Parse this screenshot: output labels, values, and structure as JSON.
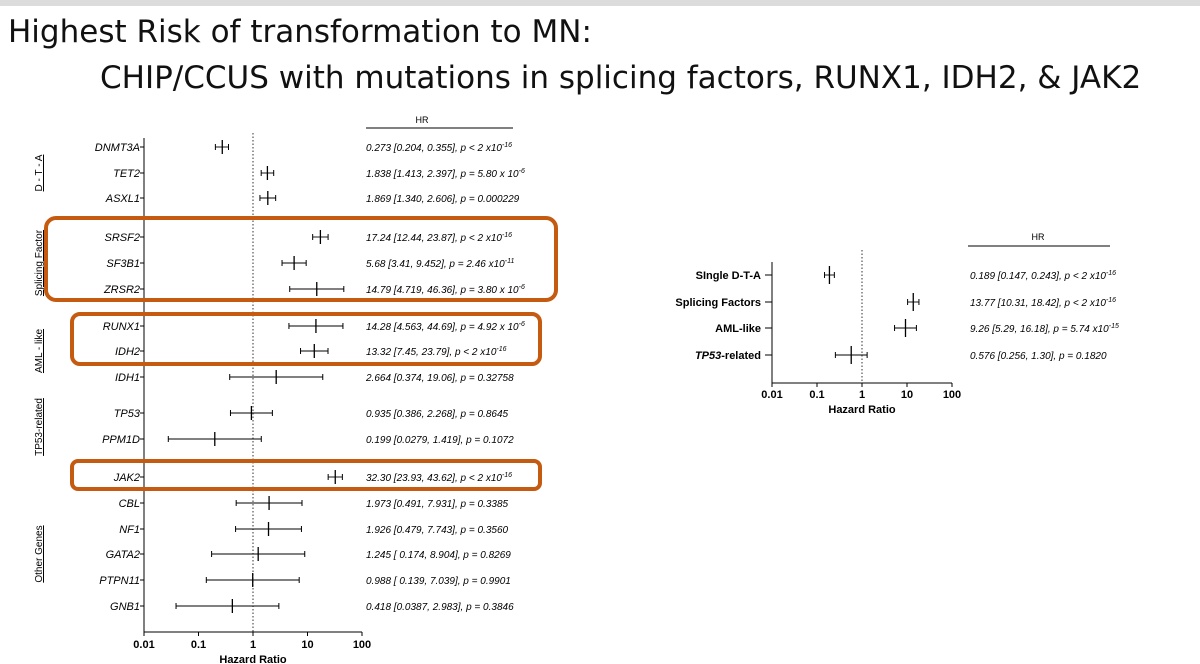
{
  "title": {
    "line1": "Highest Risk of transformation to MN:",
    "line2": "CHIP/CCUS with mutations in splicing factors, RUNX1, IDH2, & JAK2"
  },
  "colors": {
    "highlight": "#c55a11",
    "ink": "#000000"
  },
  "chart_data": [
    {
      "type": "forest",
      "scale": "log",
      "xlim": [
        0.01,
        100
      ],
      "xticks": [
        "0.01",
        "0.1",
        "1",
        "10",
        "100"
      ],
      "xlabel": "Hazard Ratio",
      "hr_header": "HR",
      "groups": [
        {
          "label": "D - T - A"
        },
        {
          "label": "Splicing Factor",
          "highlighted": true
        },
        {
          "label": "AML - like"
        },
        {
          "label": "TP53-related"
        },
        {
          "label": "Other Genes"
        }
      ],
      "rows": [
        {
          "gene": "DNMT3A",
          "hr": 0.273,
          "lo": 0.204,
          "hi": 0.355,
          "text": "0.273 [0.204, 0.355], p < 2 x10",
          "sup": "-16"
        },
        {
          "gene": "TET2",
          "hr": 1.838,
          "lo": 1.413,
          "hi": 2.397,
          "text": "1.838 [1.413, 2.397], p = 5.80 x 10",
          "sup": "-6"
        },
        {
          "gene": "ASXL1",
          "hr": 1.869,
          "lo": 1.34,
          "hi": 2.606,
          "text": "1.869 [1.340, 2.606], p = 0.000229",
          "sup": ""
        },
        {
          "gene": "SRSF2",
          "hr": 17.24,
          "lo": 12.44,
          "hi": 23.87,
          "text": "17.24 [12.44, 23.87], p < 2 x10",
          "sup": "-16"
        },
        {
          "gene": "SF3B1",
          "hr": 5.68,
          "lo": 3.41,
          "hi": 9.452,
          "text": "5.68 [3.41, 9.452], p = 2.46 x10",
          "sup": "-11"
        },
        {
          "gene": "ZRSR2",
          "hr": 14.79,
          "lo": 4.719,
          "hi": 46.36,
          "text": "14.79 [4.719, 46.36], p = 3.80 x 10",
          "sup": "-6"
        },
        {
          "gene": "RUNX1",
          "hr": 14.28,
          "lo": 4.563,
          "hi": 44.69,
          "text": "14.28 [4.563, 44.69], p = 4.92 x 10",
          "sup": "-6"
        },
        {
          "gene": "IDH2",
          "hr": 13.32,
          "lo": 7.45,
          "hi": 23.79,
          "text": "13.32 [7.45, 23.79], p < 2 x10",
          "sup": "-16"
        },
        {
          "gene": "IDH1",
          "hr": 2.664,
          "lo": 0.374,
          "hi": 19.06,
          "text": "2.664 [0.374, 19.06], p = 0.32758",
          "sup": ""
        },
        {
          "gene": "TP53",
          "hr": 0.935,
          "lo": 0.386,
          "hi": 2.268,
          "text": "0.935 [0.386, 2.268], p = 0.8645",
          "sup": ""
        },
        {
          "gene": "PPM1D",
          "hr": 0.199,
          "lo": 0.0279,
          "hi": 1.419,
          "text": "0.199 [0.0279, 1.419], p = 0.1072",
          "sup": ""
        },
        {
          "gene": "JAK2",
          "hr": 32.3,
          "lo": 23.93,
          "hi": 43.62,
          "text": "32.30 [23.93, 43.62], p < 2 x10",
          "sup": "-16"
        },
        {
          "gene": "CBL",
          "hr": 1.973,
          "lo": 0.491,
          "hi": 7.931,
          "text": "1.973 [0.491, 7.931], p = 0.3385",
          "sup": ""
        },
        {
          "gene": "NF1",
          "hr": 1.926,
          "lo": 0.479,
          "hi": 7.743,
          "text": "1.926 [0.479, 7.743], p = 0.3560",
          "sup": ""
        },
        {
          "gene": "GATA2",
          "hr": 1.245,
          "lo": 0.174,
          "hi": 8.904,
          "text": "1.245 [ 0.174, 8.904], p = 0.8269",
          "sup": ""
        },
        {
          "gene": "PTPN11",
          "hr": 0.988,
          "lo": 0.139,
          "hi": 7.039,
          "text": "0.988 [ 0.139, 7.039], p = 0.9901",
          "sup": ""
        },
        {
          "gene": "GNB1",
          "hr": 0.418,
          "lo": 0.0387,
          "hi": 2.983,
          "text": "0.418 [0.0387, 2.983], p = 0.3846",
          "sup": ""
        }
      ]
    },
    {
      "type": "forest",
      "scale": "log",
      "xlim": [
        0.01,
        100
      ],
      "xticks": [
        "0.01",
        "0.1",
        "1",
        "10",
        "100"
      ],
      "xlabel": "Hazard Ratio",
      "hr_header": "HR",
      "rows": [
        {
          "label": "SIngle D-T-A",
          "hr": 0.189,
          "lo": 0.147,
          "hi": 0.243,
          "text": "0.189 [0.147, 0.243], p < 2 x10",
          "sup": "-16"
        },
        {
          "label": "Splicing Factors",
          "hr": 13.77,
          "lo": 10.31,
          "hi": 18.42,
          "text": "13.77 [10.31, 18.42], p < 2 x10",
          "sup": "-16"
        },
        {
          "label": "AML-like",
          "hr": 9.26,
          "lo": 5.29,
          "hi": 16.18,
          "text": "9.26 [5.29, 16.18], p = 5.74 x10",
          "sup": "-15"
        },
        {
          "label_italic": "TP53",
          "label_rest": "-related",
          "hr": 0.576,
          "lo": 0.256,
          "hi": 1.3,
          "text": "0.576 [0.256, 1.30], p = 0.1820",
          "sup": ""
        }
      ]
    }
  ]
}
